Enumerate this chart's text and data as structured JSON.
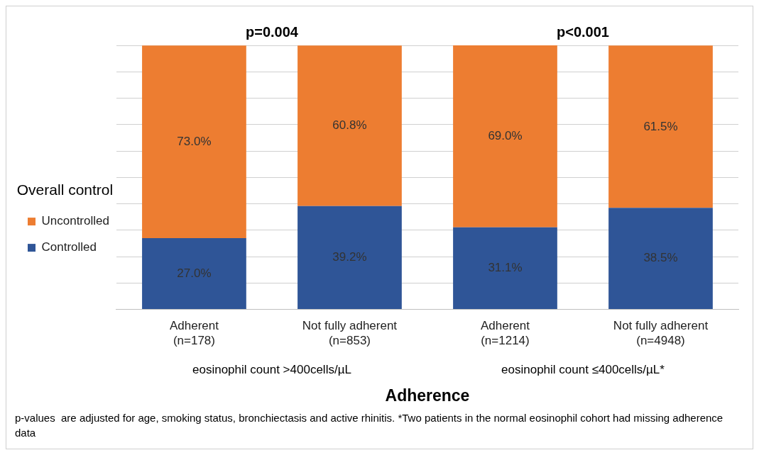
{
  "chart_data": {
    "type": "bar",
    "stacked": true,
    "categories": [
      "Adherent\n(n=178)",
      "Not fully adherent\n(n=853)",
      "Adherent\n(n=1214)",
      "Not fully adherent\n(n=4948)"
    ],
    "series": [
      {
        "name": "Controlled",
        "color": "#2f5597",
        "values": [
          27.0,
          39.2,
          31.1,
          38.5
        ],
        "value_labels": [
          "27.0%",
          "39.2%",
          "31.1%",
          "38.5%"
        ]
      },
      {
        "name": "Uncontrolled",
        "color": "#ed7d31",
        "values": [
          73.0,
          60.8,
          69.0,
          61.5
        ],
        "value_labels": [
          "73.0%",
          "60.8%",
          "69.0%",
          "61.5%"
        ]
      }
    ],
    "tick_labels": "x",
    "grid": "y",
    "legend": "left",
    "legend_title": "Overall control",
    "xlabel": "Adherence",
    "annotations": [
      "p=0.004",
      "p<0.001",
      "eosinophil count >400cells/µL",
      "eosinophil count ≤400cells/µL*",
      "p-values  are adjusted for age, smoking status, bronchiectasis and active rhinitis. *Two patients in the normal eosinophil cohort had missing adherence data"
    ]
  }
}
